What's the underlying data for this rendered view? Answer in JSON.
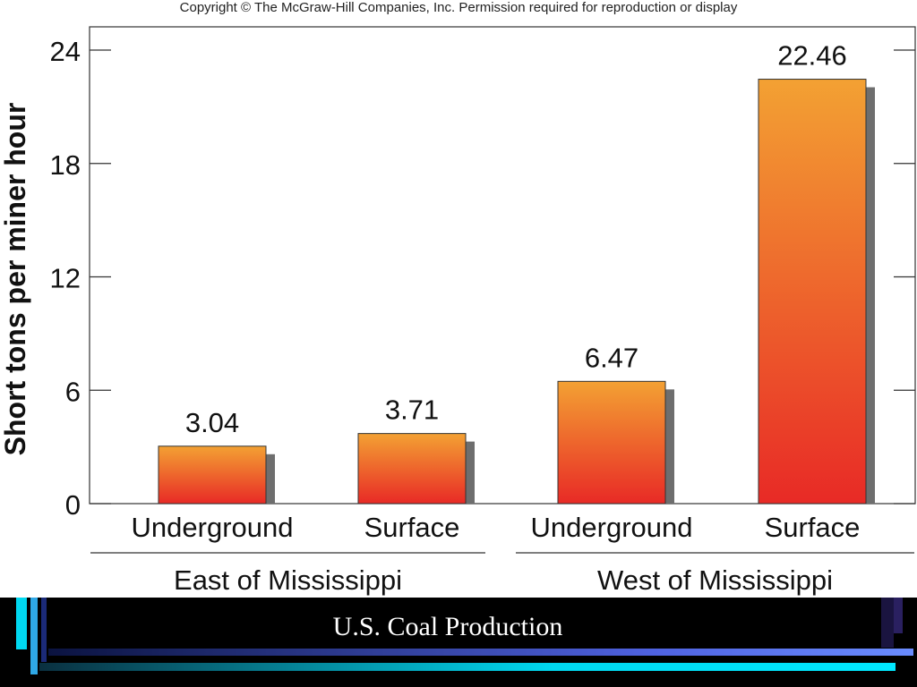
{
  "copyright": "Copyright © The McGraw-Hill Companies, Inc. Permission required for reproduction or display",
  "slide_title": "U.S. Coal Production",
  "chart_data": {
    "type": "bar",
    "title": "",
    "ylabel": "Short tons per miner hour",
    "xlabel": "",
    "ylim": [
      0,
      24
    ],
    "yticks": [
      0,
      6,
      12,
      18,
      24
    ],
    "categories": [
      "Underground",
      "Surface",
      "Underground",
      "Surface"
    ],
    "groups": [
      "East of Mississippi",
      "West of Mississippi"
    ],
    "group_index": [
      0,
      0,
      1,
      1
    ],
    "values": [
      3.04,
      3.71,
      6.47,
      22.46
    ],
    "value_labels": [
      "3.04",
      "3.71",
      "6.47",
      "22.46"
    ],
    "grid": false,
    "bar_gradient": [
      "#f3a133",
      "#e82a26"
    ],
    "shadow_color": "#6e6e6e"
  },
  "colors": {
    "background": "#ffffff",
    "footer": "#000000",
    "accent_cyan": "#00d8f0",
    "accent_blue": "#4f62e0"
  }
}
